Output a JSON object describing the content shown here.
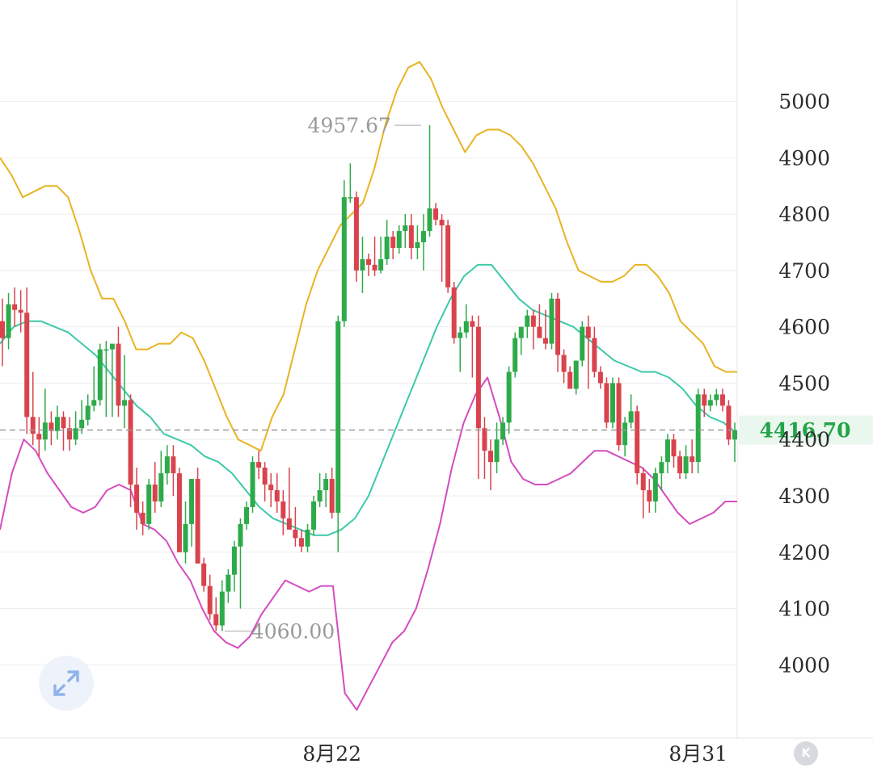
{
  "chart_data": {
    "type": "candlestick",
    "x_labels": [
      {
        "label": "8月22",
        "index": 54
      },
      {
        "label": "8月31",
        "index": 114
      }
    ],
    "ylim": [
      3870,
      5180
    ],
    "yticks": [
      4000,
      4100,
      4200,
      4300,
      4400,
      4500,
      4600,
      4700,
      4800,
      4900,
      5000
    ],
    "ytick_labels": [
      "4000",
      "4100",
      "4200",
      "4300",
      "4400",
      "4500",
      "4600",
      "4700",
      "4800",
      "4900",
      "5000"
    ],
    "grid": true,
    "current_price": 4416.7,
    "current_price_label": "4416.70",
    "annotations": [
      {
        "label": "4957.67",
        "index": 69,
        "value": 4957.67,
        "side": "left"
      },
      {
        "label": "4060.00",
        "index": 36,
        "value": 4060.0,
        "side": "right"
      }
    ],
    "colors": {
      "up": "#2daa4a",
      "down": "#d9434d",
      "upper_band": "#e8b423",
      "middle_band": "#3dc9a9",
      "lower_band": "#d44cbf",
      "current_line": "#9a9a9a",
      "price_tag_bg": "#eaf7ee",
      "price_tag_text": "#22a447"
    },
    "candles": [
      [
        4610,
        4650,
        4530,
        4580
      ],
      [
        4580,
        4660,
        4560,
        4640
      ],
      [
        4640,
        4670,
        4600,
        4630
      ],
      [
        4630,
        4665,
        4590,
        4625
      ],
      [
        4625,
        4670,
        4410,
        4440
      ],
      [
        4440,
        4520,
        4390,
        4410
      ],
      [
        4410,
        4440,
        4370,
        4400
      ],
      [
        4400,
        4490,
        4380,
        4430
      ],
      [
        4430,
        4450,
        4390,
        4415
      ],
      [
        4415,
        4460,
        4400,
        4440
      ],
      [
        4440,
        4450,
        4380,
        4420
      ],
      [
        4420,
        4440,
        4380,
        4400
      ],
      [
        4400,
        4450,
        4390,
        4420
      ],
      [
        4420,
        4470,
        4410,
        4435
      ],
      [
        4435,
        4480,
        4425,
        4460
      ],
      [
        4460,
        4530,
        4450,
        4470
      ],
      [
        4470,
        4570,
        4460,
        4560
      ],
      [
        4560,
        4575,
        4440,
        4560
      ],
      [
        4560,
        4565,
        4440,
        4570
      ],
      [
        4570,
        4600,
        4440,
        4460
      ],
      [
        4460,
        4550,
        4420,
        4470
      ],
      [
        4470,
        4480,
        4280,
        4320
      ],
      [
        4320,
        4350,
        4240,
        4270
      ],
      [
        4270,
        4290,
        4230,
        4250
      ],
      [
        4250,
        4330,
        4240,
        4320
      ],
      [
        4320,
        4360,
        4270,
        4290
      ],
      [
        4290,
        4380,
        4280,
        4340
      ],
      [
        4340,
        4390,
        4320,
        4370
      ],
      [
        4370,
        4390,
        4300,
        4340
      ],
      [
        4340,
        4350,
        4200,
        4200
      ],
      [
        4200,
        4290,
        4180,
        4250
      ],
      [
        4250,
        4330,
        4210,
        4330
      ],
      [
        4330,
        4350,
        4180,
        4180
      ],
      [
        4180,
        4190,
        4130,
        4140
      ],
      [
        4140,
        4160,
        4080,
        4090
      ],
      [
        4090,
        4120,
        4060,
        4070
      ],
      [
        4070,
        4150,
        4060,
        4130
      ],
      [
        4130,
        4170,
        4110,
        4160
      ],
      [
        4160,
        4220,
        4130,
        4210
      ],
      [
        4210,
        4260,
        4100,
        4250
      ],
      [
        4250,
        4290,
        4240,
        4280
      ],
      [
        4280,
        4370,
        4270,
        4360
      ],
      [
        4360,
        4380,
        4330,
        4350
      ],
      [
        4350,
        4360,
        4290,
        4320
      ],
      [
        4320,
        4340,
        4280,
        4310
      ],
      [
        4310,
        4340,
        4270,
        4290
      ],
      [
        4290,
        4310,
        4230,
        4260
      ],
      [
        4260,
        4350,
        4250,
        4240
      ],
      [
        4240,
        4280,
        4210,
        4225
      ],
      [
        4225,
        4240,
        4200,
        4210
      ],
      [
        4210,
        4250,
        4200,
        4240
      ],
      [
        4240,
        4300,
        4230,
        4290
      ],
      [
        4290,
        4340,
        4280,
        4310
      ],
      [
        4310,
        4340,
        4280,
        4330
      ],
      [
        4330,
        4350,
        4260,
        4270
      ],
      [
        4270,
        4620,
        4200,
        4610
      ],
      [
        4610,
        4860,
        4600,
        4830
      ],
      [
        4830,
        4890,
        4820,
        4830
      ],
      [
        4830,
        4840,
        4680,
        4700
      ],
      [
        4700,
        4760,
        4660,
        4720
      ],
      [
        4720,
        4730,
        4690,
        4710
      ],
      [
        4710,
        4760,
        4690,
        4700
      ],
      [
        4700,
        4760,
        4695,
        4720
      ],
      [
        4720,
        4790,
        4710,
        4760
      ],
      [
        4760,
        4770,
        4720,
        4740
      ],
      [
        4740,
        4780,
        4730,
        4770
      ],
      [
        4770,
        4800,
        4740,
        4780
      ],
      [
        4780,
        4800,
        4720,
        4740
      ],
      [
        4740,
        4780,
        4720,
        4750
      ],
      [
        4750,
        4800,
        4700,
        4770
      ],
      [
        4770,
        4957.67,
        4760,
        4810
      ],
      [
        4810,
        4820,
        4780,
        4790
      ],
      [
        4790,
        4800,
        4680,
        4780
      ],
      [
        4780,
        4790,
        4660,
        4670
      ],
      [
        4670,
        4680,
        4570,
        4580
      ],
      [
        4580,
        4600,
        4520,
        4590
      ],
      [
        4590,
        4640,
        4580,
        4610
      ],
      [
        4610,
        4620,
        4510,
        4600
      ],
      [
        4600,
        4620,
        4330,
        4420
      ],
      [
        4420,
        4440,
        4330,
        4380
      ],
      [
        4380,
        4400,
        4310,
        4360
      ],
      [
        4360,
        4430,
        4340,
        4400
      ],
      [
        4400,
        4440,
        4390,
        4430
      ],
      [
        4430,
        4530,
        4410,
        4520
      ],
      [
        4520,
        4590,
        4510,
        4580
      ],
      [
        4580,
        4600,
        4550,
        4600
      ],
      [
        4600,
        4630,
        4580,
        4620
      ],
      [
        4620,
        4630,
        4560,
        4600
      ],
      [
        4600,
        4640,
        4590,
        4580
      ],
      [
        4580,
        4630,
        4560,
        4570
      ],
      [
        4570,
        4660,
        4560,
        4650
      ],
      [
        4650,
        4660,
        4520,
        4550
      ],
      [
        4550,
        4560,
        4500,
        4520
      ],
      [
        4520,
        4530,
        4490,
        4490
      ],
      [
        4490,
        4530,
        4480,
        4540
      ],
      [
        4540,
        4610,
        4530,
        4600
      ],
      [
        4600,
        4620,
        4490,
        4580
      ],
      [
        4580,
        4600,
        4510,
        4520
      ],
      [
        4520,
        4530,
        4490,
        4500
      ],
      [
        4500,
        4510,
        4420,
        4430
      ],
      [
        4430,
        4510,
        4420,
        4500
      ],
      [
        4500,
        4510,
        4380,
        4390
      ],
      [
        4390,
        4440,
        4370,
        4430
      ],
      [
        4430,
        4480,
        4420,
        4450
      ],
      [
        4450,
        4460,
        4320,
        4340
      ],
      [
        4340,
        4350,
        4260,
        4310
      ],
      [
        4310,
        4330,
        4270,
        4290
      ],
      [
        4290,
        4350,
        4270,
        4340
      ],
      [
        4340,
        4370,
        4310,
        4360
      ],
      [
        4360,
        4410,
        4340,
        4400
      ],
      [
        4400,
        4410,
        4350,
        4370
      ],
      [
        4370,
        4380,
        4330,
        4340
      ],
      [
        4340,
        4390,
        4330,
        4370
      ],
      [
        4370,
        4400,
        4340,
        4360
      ],
      [
        4360,
        4490,
        4340,
        4480
      ],
      [
        4480,
        4490,
        4440,
        4460
      ],
      [
        4460,
        4480,
        4450,
        4470
      ],
      [
        4470,
        4490,
        4460,
        4480
      ],
      [
        4480,
        4490,
        4450,
        4460
      ],
      [
        4460,
        4470,
        4390,
        4400
      ],
      [
        4400,
        4430,
        4360,
        4416.7
      ]
    ],
    "upper_band": [
      4900,
      4870,
      4830,
      4840,
      4850,
      4850,
      4830,
      4770,
      4700,
      4650,
      4650,
      4610,
      4560,
      4560,
      4570,
      4570,
      4590,
      4580,
      4540,
      4490,
      4440,
      4400,
      4390,
      4380,
      4440,
      4480,
      4560,
      4640,
      4700,
      4740,
      4780,
      4800,
      4820,
      4880,
      4960,
      5020,
      5060,
      5070,
      5040,
      4990,
      4950,
      4910,
      4940,
      4950,
      4950,
      4940,
      4920,
      4890,
      4850,
      4810,
      4750,
      4700,
      4690,
      4680,
      4680,
      4690,
      4710,
      4710,
      4690,
      4660,
      4610,
      4590,
      4570,
      4530,
      4520,
      4520
    ],
    "middle_band": [
      4570,
      4600,
      4610,
      4610,
      4600,
      4590,
      4570,
      4550,
      4520,
      4490,
      4460,
      4440,
      4410,
      4400,
      4390,
      4370,
      4360,
      4340,
      4310,
      4280,
      4260,
      4250,
      4240,
      4230,
      4230,
      4240,
      4260,
      4300,
      4360,
      4420,
      4480,
      4540,
      4600,
      4650,
      4690,
      4710,
      4710,
      4680,
      4650,
      4630,
      4620,
      4610,
      4600,
      4580,
      4560,
      4540,
      4530,
      4520,
      4520,
      4510,
      4490,
      4460,
      4440,
      4430,
      4410
    ],
    "lower_band": [
      4240,
      4340,
      4400,
      4380,
      4340,
      4310,
      4280,
      4270,
      4280,
      4310,
      4320,
      4310,
      4250,
      4240,
      4220,
      4180,
      4150,
      4100,
      4060,
      4040,
      4030,
      4050,
      4090,
      4120,
      4150,
      4140,
      4130,
      4140,
      4140,
      3950,
      3920,
      3960,
      4000,
      4040,
      4060,
      4100,
      4170,
      4250,
      4350,
      4430,
      4480,
      4510,
      4440,
      4360,
      4330,
      4320,
      4320,
      4330,
      4340,
      4360,
      4380,
      4380,
      4370,
      4360,
      4350,
      4330,
      4300,
      4270,
      4250,
      4260,
      4270,
      4290,
      4290
    ]
  }
}
